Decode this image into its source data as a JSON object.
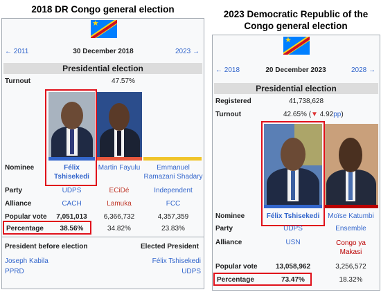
{
  "infobox_2018": {
    "title": "2018 DR Congo general election",
    "prev": "← 2011",
    "date": "30 December 2018",
    "next": "2023 →",
    "section": "Presidential election",
    "turnout_label": "Turnout",
    "turnout": "47.57%",
    "nominee_label": "Nominee",
    "party_label": "Party",
    "alliance_label": "Alliance",
    "popular_vote_label": "Popular vote",
    "percentage_label": "Percentage",
    "candidates": [
      {
        "name_1": "Félix",
        "name_2": "Tshisekedi",
        "party": "UDPS",
        "alliance": "CACH",
        "votes": "7,051,013",
        "percentage": "38.56%",
        "color": "#3366cc"
      },
      {
        "name_1": "Martin Fayulu",
        "name_2": "",
        "party": "ECiDé",
        "alliance": "Lamuka",
        "votes": "6,366,732",
        "percentage": "34.82%",
        "color": "#e8573c"
      },
      {
        "name_1": "Emmanuel",
        "name_2": "Ramazani Shadary",
        "party": "Independent",
        "alliance": "FCC",
        "votes": "4,357,359",
        "percentage": "23.83%",
        "color": "#f0c42a"
      }
    ],
    "before_label": "President before election",
    "before_name": "Joseph Kabila",
    "before_party": "PPRD",
    "elected_label": "Elected President",
    "elected_name": "Félix Tshisekedi",
    "elected_party": "UDPS"
  },
  "infobox_2023": {
    "title_line1": "2023 Democratic Republic of the",
    "title_line2": "Congo general election",
    "prev": "← 2018",
    "date": "20 December 2023",
    "next": "2028 →",
    "section": "Presidential election",
    "registered_label": "Registered",
    "registered": "41,738,628",
    "turnout_label": "Turnout",
    "turnout": "42.65%",
    "turnout_change_open": "(",
    "turnout_change_arrow": "▼",
    "turnout_change_value": "4.92",
    "turnout_change_unit": "pp",
    "turnout_change_close": ")",
    "nominee_label": "Nominee",
    "party_label": "Party",
    "alliance_label": "Alliance",
    "popular_vote_label": "Popular vote",
    "percentage_label": "Percentage",
    "candidates": [
      {
        "name": "Félix Tshisekedi",
        "party": "UDPS",
        "alliance": "USN",
        "alliance_2": "",
        "votes": "13,058,962",
        "percentage": "73.47%",
        "color": "#3366cc"
      },
      {
        "name": "Moïse Katumbi",
        "party": "Ensemble",
        "alliance": "Congo ya",
        "alliance_2": "Makasi",
        "votes": "3,256,572",
        "percentage": "18.32%",
        "color": "#ba0000"
      }
    ]
  }
}
